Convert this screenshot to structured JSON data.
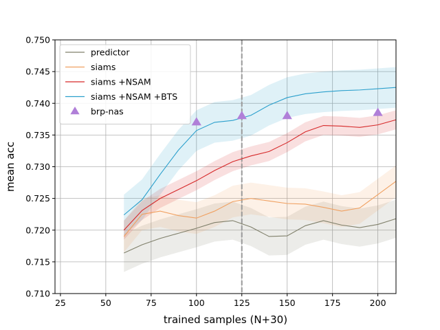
{
  "chart_data": {
    "type": "line",
    "title": "",
    "xlabel": "trained samples (N+30)",
    "ylabel": "mean acc",
    "xlim": [
      22,
      210
    ],
    "ylim": [
      0.71,
      0.75
    ],
    "xticks": [
      25,
      50,
      75,
      100,
      125,
      150,
      175,
      200
    ],
    "yticks": [
      0.71,
      0.715,
      0.72,
      0.725,
      0.73,
      0.735,
      0.74,
      0.745,
      0.75
    ],
    "grid": true,
    "legend_position": "top-left",
    "vline": {
      "x": 125,
      "color": "#999999",
      "style": "dashed"
    },
    "series": [
      {
        "name": "predictor",
        "color": "#7f7f6a",
        "x": [
          60,
          70,
          80,
          90,
          100,
          110,
          120,
          130,
          140,
          150,
          160,
          170,
          180,
          190,
          200,
          210
        ],
        "values": [
          0.7164,
          0.7177,
          0.7187,
          0.7195,
          0.7203,
          0.7212,
          0.7215,
          0.7205,
          0.719,
          0.7191,
          0.7207,
          0.7215,
          0.7208,
          0.7204,
          0.7209,
          0.7218
        ],
        "band": 0.003
      },
      {
        "name": "siams",
        "color": "#f0a060",
        "x": [
          60,
          70,
          80,
          90,
          100,
          110,
          120,
          130,
          140,
          150,
          160,
          170,
          180,
          190,
          200,
          210
        ],
        "values": [
          0.719,
          0.7225,
          0.723,
          0.7223,
          0.7219,
          0.723,
          0.7245,
          0.725,
          0.7246,
          0.7242,
          0.7241,
          0.7236,
          0.723,
          0.7235,
          0.7256,
          0.7277
        ],
        "band": 0.0025
      },
      {
        "name": "siams +NSAM",
        "color": "#d62728",
        "x": [
          60,
          70,
          80,
          90,
          100,
          110,
          120,
          130,
          140,
          150,
          160,
          170,
          180,
          190,
          200,
          210
        ],
        "values": [
          0.72,
          0.7231,
          0.725,
          0.7264,
          0.7278,
          0.7294,
          0.7308,
          0.7317,
          0.7324,
          0.7338,
          0.7355,
          0.7365,
          0.7364,
          0.7362,
          0.7366,
          0.7374
        ],
        "band": 0.0015
      },
      {
        "name": "siams +NSAM +BTS",
        "color": "#2a9fcc",
        "x": [
          60,
          70,
          80,
          90,
          100,
          110,
          120,
          130,
          140,
          150,
          160,
          170,
          180,
          190,
          200,
          210
        ],
        "values": [
          0.7224,
          0.7248,
          0.7288,
          0.7326,
          0.7357,
          0.737,
          0.7373,
          0.7381,
          0.7397,
          0.7409,
          0.7415,
          0.7418,
          0.742,
          0.7421,
          0.7423,
          0.7425
        ],
        "band": 0.0032
      }
    ],
    "markers": {
      "name": "brp-nas",
      "color": "#b07fd8",
      "shape": "triangle",
      "x": [
        100,
        125,
        150,
        200
      ],
      "values": [
        0.737,
        0.738,
        0.738,
        0.7385
      ]
    }
  }
}
